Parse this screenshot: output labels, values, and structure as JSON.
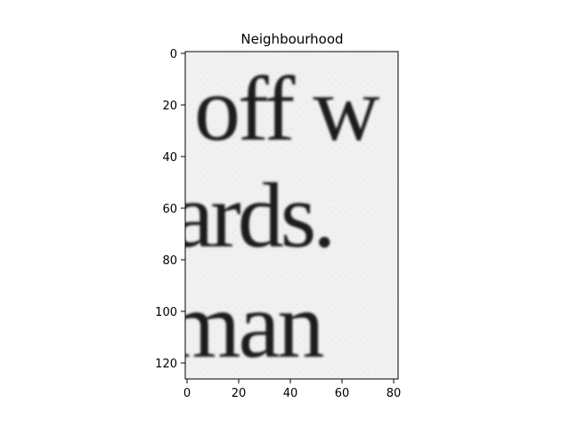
{
  "figure": {
    "title": "Neighbourhood",
    "image_text": [
      "off w",
      "ards.",
      "man"
    ],
    "x_ticks": [
      "0",
      "20",
      "40",
      "60",
      "80"
    ],
    "y_ticks": [
      "0",
      "20",
      "40",
      "60",
      "80",
      "100",
      "120"
    ],
    "colors": {
      "background": "#ffffff",
      "paper": "#eeeeee",
      "ink": "#1b1b1b",
      "axis": "#000000"
    }
  }
}
